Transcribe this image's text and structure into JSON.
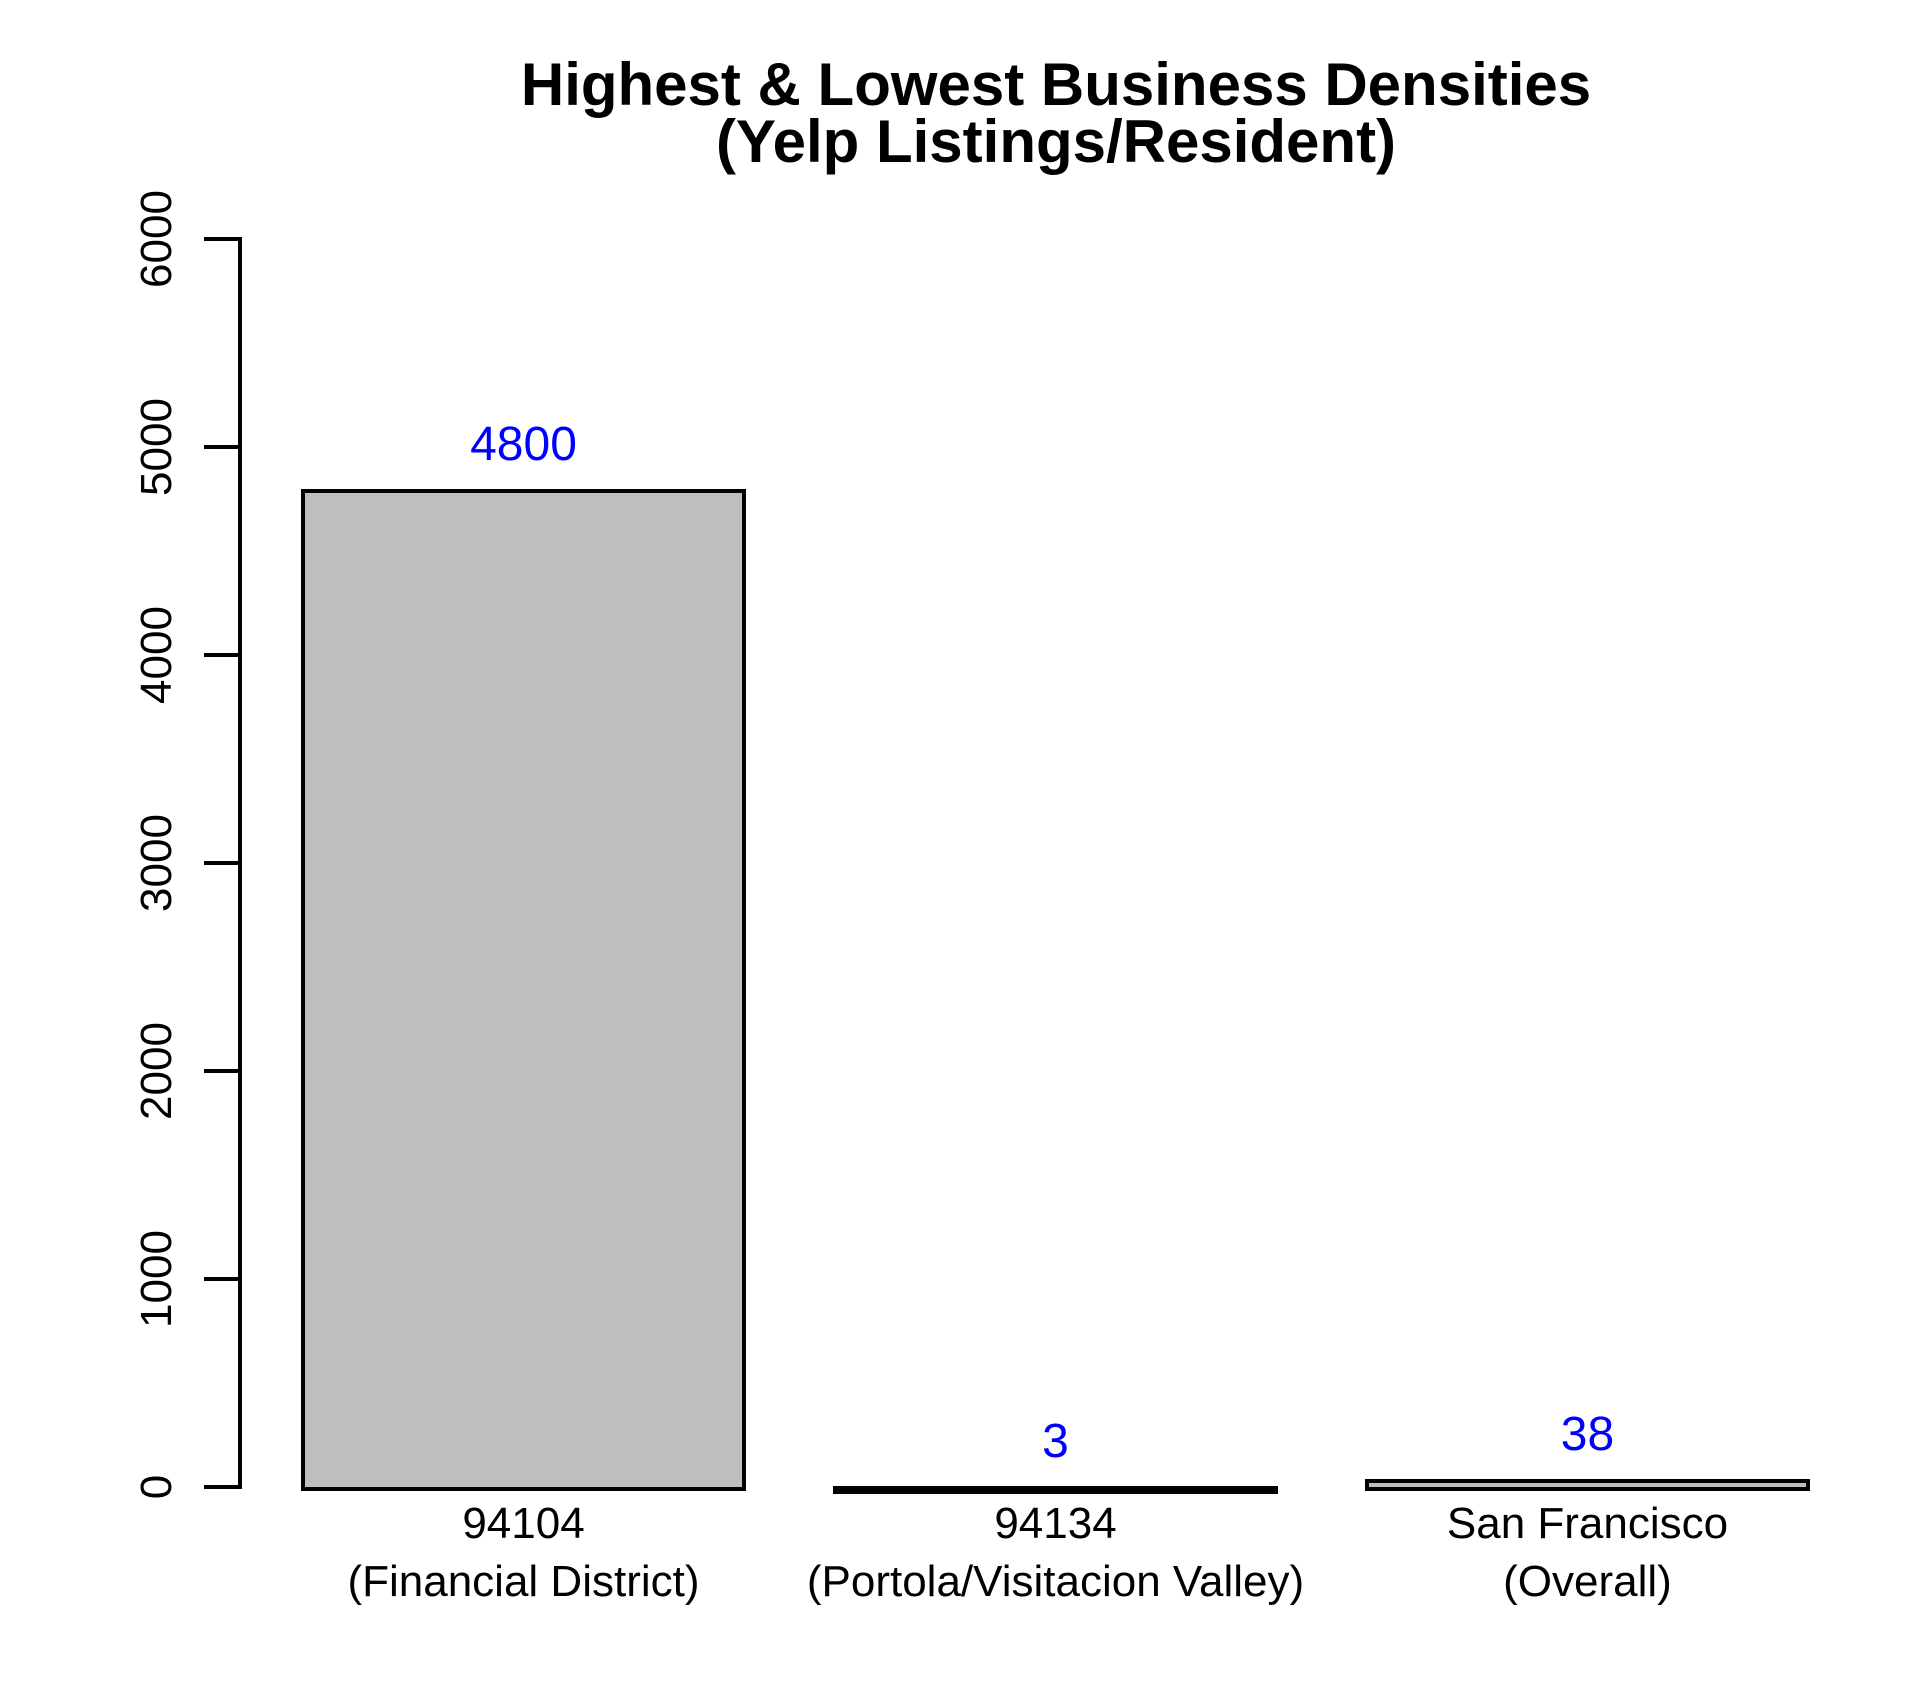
{
  "title": {
    "line1": "Highest & Lowest Business Densities",
    "line2": "(Yelp Listings/Resident)"
  },
  "chart_data": {
    "type": "bar",
    "title": "Highest & Lowest Business Densities (Yelp Listings/Resident)",
    "categories": [
      "94104 (Financial District)",
      "94134 (Portola/Visitacion Valley)",
      "San Francisco (Overall)"
    ],
    "category_lines": [
      {
        "line1": "94104",
        "line2": "(Financial District)"
      },
      {
        "line1": "94134",
        "line2": "(Portola/Visitacion Valley)"
      },
      {
        "line1": "San Francisco",
        "line2": "(Overall)"
      }
    ],
    "values": [
      4800,
      3,
      38
    ],
    "value_labels": [
      "4800",
      "3",
      "38"
    ],
    "ylim": [
      0,
      6000
    ],
    "yticks": [
      0,
      1000,
      2000,
      3000,
      4000,
      5000,
      6000
    ],
    "xlabel": "",
    "ylabel": "",
    "grid": false,
    "legend": "none",
    "colors": {
      "bar_fill": "#BEBEBE",
      "bar_border": "#000000",
      "value_label": "#0000FF",
      "axis": "#000000",
      "title_text": "#000000",
      "background": "#FFFFFF"
    }
  }
}
